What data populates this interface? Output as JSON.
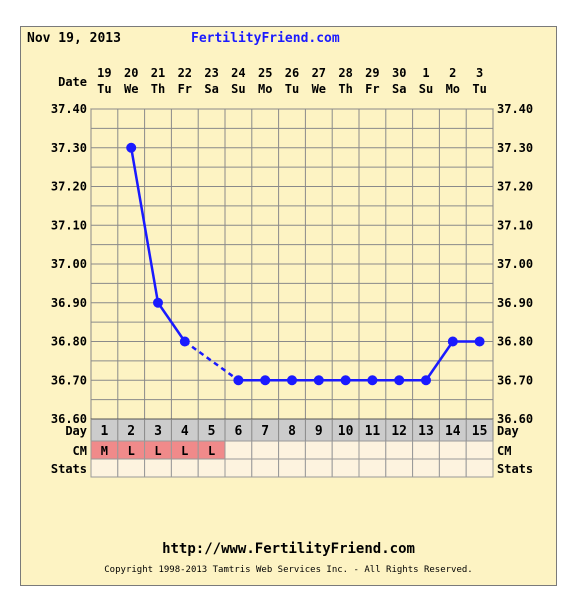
{
  "header": {
    "date": "Nov 19, 2013",
    "site": "FertilityFriend.com"
  },
  "footer": {
    "url": "http://www.FertilityFriend.com",
    "copyright": "Copyright 1998-2013 Tamtris Web Services Inc. - All Rights Reserved."
  },
  "chart_data": {
    "type": "line",
    "row_labels": {
      "date": "Date",
      "day": "Day",
      "cm": "CM",
      "stats": "Stats"
    },
    "dates": [
      "19",
      "20",
      "21",
      "22",
      "23",
      "24",
      "25",
      "26",
      "27",
      "28",
      "29",
      "30",
      "1",
      "2",
      "3"
    ],
    "weekdays": [
      "Tu",
      "We",
      "Th",
      "Fr",
      "Sa",
      "Su",
      "Mo",
      "Tu",
      "We",
      "Th",
      "Fr",
      "Sa",
      "Su",
      "Mo",
      "Tu"
    ],
    "cycle_days": [
      1,
      2,
      3,
      4,
      5,
      6,
      7,
      8,
      9,
      10,
      11,
      12,
      13,
      14,
      15
    ],
    "y_ticks": [
      "37.40",
      "37.30",
      "37.20",
      "37.10",
      "37.00",
      "36.90",
      "36.80",
      "36.70",
      "36.60"
    ],
    "ylim": [
      36.6,
      37.4
    ],
    "temperatures": [
      null,
      37.3,
      36.9,
      36.8,
      null,
      36.7,
      36.7,
      36.7,
      36.7,
      36.7,
      36.7,
      36.7,
      36.7,
      36.8,
      36.8
    ],
    "cm": [
      "M",
      "L",
      "L",
      "L",
      "L",
      "",
      "",
      "",
      "",
      "",
      "",
      "",
      "",
      "",
      ""
    ],
    "colors": {
      "background": "#fdf3c3",
      "series": "#1a1aff",
      "grid": "#8a8a8a",
      "day_row": "#cccccc",
      "cm_filled": "#f08a8a",
      "cell_empty": "#fdf3df"
    }
  }
}
